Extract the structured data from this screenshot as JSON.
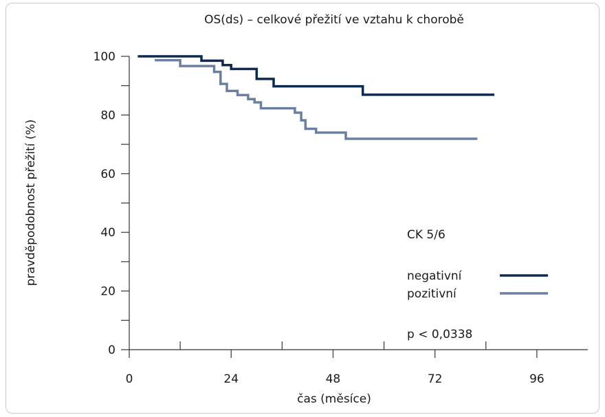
{
  "chart_data": {
    "type": "line",
    "subtype": "kaplan-meier-step",
    "title": "OS(ds) – celkové přežití ve vztahu k chorobě",
    "xlabel": "čas (měsíce)",
    "ylabel": "pravděpodobnost přežití (%)",
    "xlim": [
      0,
      108
    ],
    "ylim": [
      0,
      100
    ],
    "x_ticks": [
      0,
      24,
      48,
      72,
      96
    ],
    "x_minor_ticks": [
      12,
      36,
      60,
      84
    ],
    "y_ticks": [
      0,
      20,
      40,
      60,
      80,
      100
    ],
    "y_minor_ticks": [
      10,
      30,
      50,
      70,
      90
    ],
    "grid": false,
    "legend_placement": "right",
    "legend_title": "CK 5/6",
    "annotation": "p < 0,0338",
    "series": [
      {
        "name": "negativní",
        "color": "#0d2a4f",
        "points": [
          [
            2,
            100
          ],
          [
            17,
            100
          ],
          [
            17,
            98.5
          ],
          [
            22,
            98.5
          ],
          [
            22,
            97
          ],
          [
            24,
            97
          ],
          [
            24,
            95.7
          ],
          [
            30,
            95.7
          ],
          [
            30,
            92.3
          ],
          [
            34,
            92.3
          ],
          [
            34,
            89.8
          ],
          [
            55,
            89.8
          ],
          [
            55,
            86.9
          ],
          [
            86,
            86.9
          ]
        ]
      },
      {
        "name": "pozitivní",
        "color": "#6b80a1",
        "points": [
          [
            6,
            98.7
          ],
          [
            12,
            98.7
          ],
          [
            12,
            96.7
          ],
          [
            20,
            96.7
          ],
          [
            20,
            94.7
          ],
          [
            21.5,
            94.7
          ],
          [
            21.5,
            90.6
          ],
          [
            23,
            90.6
          ],
          [
            23,
            88.2
          ],
          [
            25.5,
            88.2
          ],
          [
            25.5,
            86.8
          ],
          [
            28,
            86.8
          ],
          [
            28,
            85.4
          ],
          [
            29.5,
            85.4
          ],
          [
            29.5,
            84.3
          ],
          [
            31,
            84.3
          ],
          [
            31,
            82.3
          ],
          [
            39,
            82.3
          ],
          [
            39,
            80.8
          ],
          [
            40.5,
            80.8
          ],
          [
            40.5,
            78.2
          ],
          [
            41.5,
            78.2
          ],
          [
            41.5,
            75.3
          ],
          [
            44,
            75.3
          ],
          [
            44,
            74
          ],
          [
            51,
            74
          ],
          [
            51,
            71.9
          ],
          [
            82,
            71.9
          ]
        ]
      }
    ]
  }
}
